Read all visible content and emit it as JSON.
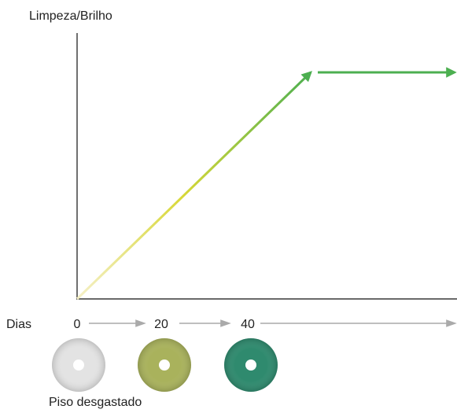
{
  "chart_data": {
    "type": "line",
    "ylabel": "Limpeza/Brilho",
    "xlabel": "Dias",
    "x_ticks": [
      "0",
      "20",
      "40"
    ],
    "series": [
      {
        "x": [
          0,
          40,
          60
        ],
        "y": [
          0,
          1,
          1
        ],
        "stroke_colors": [
          "#f5f0c8",
          "#d8d838",
          "#4caf50"
        ]
      }
    ],
    "pads": [
      {
        "color": "#e3e3e3",
        "icon": "white-floor-pad-icon"
      },
      {
        "color": "#a9b25c",
        "icon": "olive-floor-pad-icon"
      },
      {
        "color": "#2f8a6e",
        "icon": "green-floor-pad-icon"
      }
    ],
    "pad_caption": "Piso desgastado"
  }
}
